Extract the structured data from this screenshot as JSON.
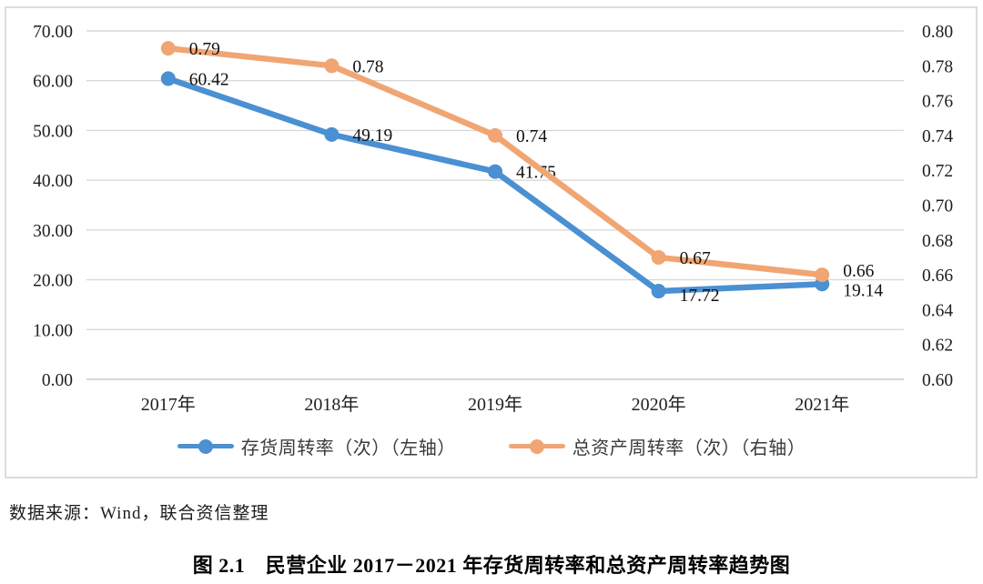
{
  "chart_data": {
    "type": "line",
    "title": "",
    "categories": [
      "2017年",
      "2018年",
      "2019年",
      "2020年",
      "2021年"
    ],
    "series": [
      {
        "name": "存货周转率（次）（左轴）",
        "axis": "left",
        "color": "#4A90D2",
        "values": [
          60.42,
          49.19,
          41.75,
          17.72,
          19.14
        ],
        "point_labels": [
          "60.42",
          "49.19",
          "41.75",
          "17.72",
          "19.14"
        ]
      },
      {
        "name": "总资产周转率（次）（右轴）",
        "axis": "right",
        "color": "#F0A573",
        "values": [
          0.79,
          0.78,
          0.74,
          0.67,
          0.66
        ],
        "point_labels": [
          "0.79",
          "0.78",
          "0.74",
          "0.67",
          "0.66"
        ]
      }
    ],
    "left_axis": {
      "min": 0,
      "max": 70,
      "step": 10,
      "ticks": [
        "70.00",
        "60.00",
        "50.00",
        "40.00",
        "30.00",
        "20.00",
        "10.00",
        "0.00"
      ]
    },
    "right_axis": {
      "min": 0.6,
      "max": 0.8,
      "step": 0.02,
      "ticks": [
        "0.80",
        "0.78",
        "0.76",
        "0.74",
        "0.72",
        "0.70",
        "0.68",
        "0.66",
        "0.64",
        "0.62",
        "0.60"
      ]
    },
    "grid": true,
    "legend_position": "bottom",
    "colors": {
      "gridline": "#D9D9D9",
      "axis_line": "#C9C9C9",
      "border": "#D3D3D3",
      "tick_text": "#1F1F1F",
      "point_label_text": "#111111"
    }
  },
  "source_note": "数据来源：Wind，联合资信整理",
  "caption": "图 2.1　民营企业 2017－2021 年存货周转率和总资产周转率趋势图"
}
